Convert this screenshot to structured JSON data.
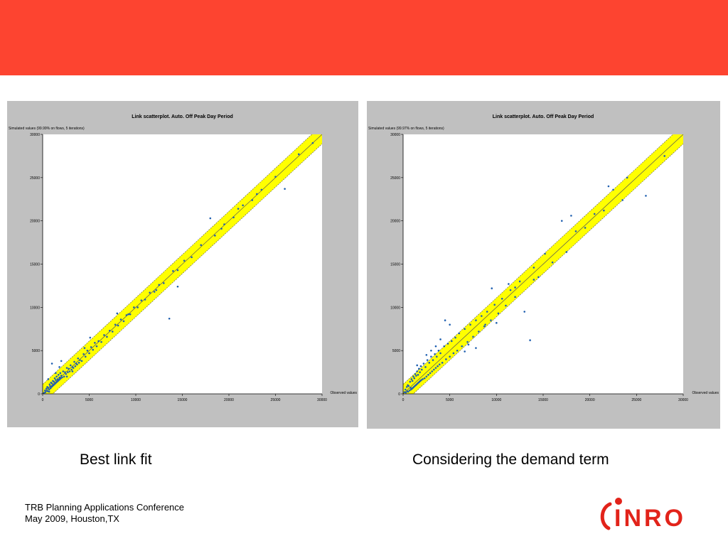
{
  "slide": {
    "banner_color": "#fd4430",
    "captions": [
      "Best link fit",
      "Considering the demand term"
    ],
    "footer": {
      "line1": "TRB Planning Applications Conference",
      "line2": "May 2009, Houston,TX"
    },
    "logo": {
      "text": "INRO",
      "color": "#e2231a"
    }
  },
  "chart_data": [
    {
      "type": "scatter",
      "title": "Link scatterplot. Auto. Off Peak Day Period",
      "ylabel": "Simulated values (99.99% on flows, 5 iterations)",
      "xlabel": "Observed values",
      "xlim": [
        0,
        30000
      ],
      "ylim": [
        0,
        30000
      ],
      "xticks": [
        0,
        5000,
        10000,
        15000,
        20000,
        25000,
        30000
      ],
      "yticks": [
        0,
        5000,
        10000,
        15000,
        20000,
        25000,
        30000
      ],
      "band_color": "#ffff00",
      "point_color": "#1f5fb0",
      "points": [
        [
          150,
          120
        ],
        [
          250,
          400
        ],
        [
          300,
          180
        ],
        [
          400,
          600
        ],
        [
          450,
          350
        ],
        [
          500,
          800
        ],
        [
          550,
          300
        ],
        [
          600,
          700
        ],
        [
          700,
          500
        ],
        [
          750,
          1100
        ],
        [
          800,
          900
        ],
        [
          850,
          650
        ],
        [
          900,
          1300
        ],
        [
          950,
          800
        ],
        [
          1000,
          1200
        ],
        [
          1050,
          900
        ],
        [
          1100,
          1500
        ],
        [
          1150,
          1000
        ],
        [
          1200,
          1400
        ],
        [
          1250,
          1100
        ],
        [
          1300,
          1800
        ],
        [
          1350,
          1200
        ],
        [
          1400,
          1600
        ],
        [
          1450,
          1300
        ],
        [
          1500,
          2000
        ],
        [
          1550,
          1400
        ],
        [
          1600,
          1700
        ],
        [
          1650,
          1500
        ],
        [
          1700,
          2200
        ],
        [
          1750,
          1600
        ],
        [
          1800,
          1900
        ],
        [
          1850,
          1700
        ],
        [
          1900,
          2400
        ],
        [
          1950,
          1800
        ],
        [
          2000,
          2100
        ],
        [
          2100,
          1900
        ],
        [
          2200,
          2600
        ],
        [
          2300,
          2000
        ],
        [
          2400,
          2500
        ],
        [
          2500,
          2300
        ],
        [
          2600,
          3000
        ],
        [
          2700,
          2500
        ],
        [
          2800,
          2900
        ],
        [
          2900,
          2600
        ],
        [
          3000,
          3300
        ],
        [
          3100,
          2800
        ],
        [
          3200,
          3100
        ],
        [
          3300,
          3000
        ],
        [
          3400,
          3700
        ],
        [
          3500,
          3200
        ],
        [
          3600,
          3500
        ],
        [
          3700,
          3400
        ],
        [
          3800,
          4100
        ],
        [
          3900,
          3600
        ],
        [
          4000,
          3900
        ],
        [
          4200,
          3800
        ],
        [
          4400,
          4600
        ],
        [
          4600,
          4300
        ],
        [
          4800,
          5000
        ],
        [
          5000,
          4700
        ],
        [
          5200,
          5400
        ],
        [
          5400,
          5100
        ],
        [
          5600,
          5900
        ],
        [
          5800,
          5500
        ],
        [
          6000,
          6100
        ],
        [
          6300,
          6000
        ],
        [
          6600,
          6800
        ],
        [
          6900,
          6600
        ],
        [
          7200,
          7300
        ],
        [
          7500,
          7200
        ],
        [
          7800,
          8000
        ],
        [
          8100,
          7900
        ],
        [
          8400,
          8600
        ],
        [
          8700,
          8400
        ],
        [
          9000,
          9100
        ],
        [
          9400,
          9200
        ],
        [
          9800,
          10000
        ],
        [
          10200,
          10000
        ],
        [
          10600,
          10800
        ],
        [
          11000,
          10900
        ],
        [
          11500,
          11700
        ],
        [
          12000,
          11800
        ],
        [
          12500,
          12600
        ],
        [
          13000,
          12800
        ],
        [
          13600,
          8700
        ],
        [
          14000,
          14200
        ],
        [
          14500,
          14300
        ],
        [
          15200,
          15400
        ],
        [
          16000,
          15800
        ],
        [
          17000,
          17200
        ],
        [
          18000,
          20300
        ],
        [
          18500,
          18300
        ],
        [
          19500,
          19600
        ],
        [
          20500,
          20400
        ],
        [
          21500,
          21800
        ],
        [
          22500,
          22400
        ],
        [
          23500,
          23600
        ],
        [
          25000,
          25100
        ],
        [
          26000,
          23700
        ],
        [
          27500,
          27700
        ],
        [
          1000,
          3500
        ],
        [
          2000,
          3800
        ],
        [
          9200,
          9200
        ],
        [
          4500,
          5300
        ],
        [
          3200,
          2600
        ],
        [
          1400,
          2400
        ],
        [
          600,
          1700
        ],
        [
          700,
          250
        ],
        [
          1800,
          3100
        ],
        [
          2600,
          2000
        ],
        [
          5100,
          6500
        ],
        [
          8000,
          9300
        ],
        [
          12200,
          12000
        ],
        [
          14500,
          12400
        ],
        [
          19200,
          19100
        ],
        [
          21000,
          21400
        ],
        [
          23000,
          23100
        ],
        [
          29000,
          29000
        ]
      ]
    },
    {
      "type": "scatter",
      "title": "Link scatterplot. Auto. Off Peak Day Period",
      "ylabel": "Simulated values (99.97% on flows, 5 iterations)",
      "xlabel": "Observed values",
      "xlim": [
        0,
        30000
      ],
      "ylim": [
        0,
        30000
      ],
      "xticks": [
        0,
        5000,
        10000,
        15000,
        20000,
        25000,
        30000
      ],
      "yticks": [
        0,
        5000,
        10000,
        15000,
        20000,
        25000,
        30000
      ],
      "band_color": "#ffff00",
      "point_color": "#1f5fb0",
      "points": [
        [
          150,
          200
        ],
        [
          250,
          500
        ],
        [
          300,
          150
        ],
        [
          400,
          800
        ],
        [
          450,
          300
        ],
        [
          500,
          1000
        ],
        [
          550,
          250
        ],
        [
          600,
          900
        ],
        [
          700,
          400
        ],
        [
          750,
          1400
        ],
        [
          800,
          700
        ],
        [
          850,
          500
        ],
        [
          900,
          1700
        ],
        [
          950,
          600
        ],
        [
          1000,
          1500
        ],
        [
          1050,
          700
        ],
        [
          1100,
          2000
        ],
        [
          1150,
          800
        ],
        [
          1200,
          1800
        ],
        [
          1250,
          900
        ],
        [
          1300,
          2300
        ],
        [
          1350,
          1000
        ],
        [
          1400,
          2100
        ],
        [
          1450,
          1100
        ],
        [
          1500,
          2600
        ],
        [
          1550,
          1200
        ],
        [
          1600,
          2200
        ],
        [
          1650,
          1300
        ],
        [
          1700,
          2900
        ],
        [
          1750,
          1400
        ],
        [
          1800,
          2500
        ],
        [
          1850,
          1500
        ],
        [
          1900,
          3200
        ],
        [
          1950,
          1600
        ],
        [
          2000,
          2800
        ],
        [
          2100,
          1700
        ],
        [
          2200,
          3500
        ],
        [
          2300,
          1800
        ],
        [
          2400,
          3100
        ],
        [
          2500,
          2000
        ],
        [
          2600,
          3900
        ],
        [
          2700,
          2200
        ],
        [
          2800,
          3600
        ],
        [
          2900,
          2400
        ],
        [
          3000,
          4300
        ],
        [
          3100,
          2600
        ],
        [
          3200,
          3900
        ],
        [
          3300,
          2800
        ],
        [
          3400,
          4600
        ],
        [
          3500,
          3000
        ],
        [
          3600,
          4300
        ],
        [
          3700,
          3200
        ],
        [
          3800,
          5000
        ],
        [
          3900,
          3400
        ],
        [
          4000,
          4700
        ],
        [
          4200,
          3600
        ],
        [
          4400,
          5500
        ],
        [
          4600,
          4000
        ],
        [
          4800,
          5800
        ],
        [
          5000,
          4300
        ],
        [
          5200,
          6100
        ],
        [
          5400,
          4700
        ],
        [
          5600,
          6500
        ],
        [
          5800,
          5000
        ],
        [
          6000,
          7000
        ],
        [
          6300,
          5500
        ],
        [
          6600,
          7500
        ],
        [
          6900,
          6000
        ],
        [
          7200,
          8000
        ],
        [
          7500,
          6600
        ],
        [
          7800,
          8500
        ],
        [
          8100,
          7200
        ],
        [
          8400,
          9000
        ],
        [
          8700,
          7800
        ],
        [
          9000,
          9500
        ],
        [
          9400,
          8500
        ],
        [
          9800,
          10300
        ],
        [
          10200,
          9300
        ],
        [
          10600,
          11000
        ],
        [
          11000,
          10200
        ],
        [
          11500,
          12000
        ],
        [
          12000,
          11200
        ],
        [
          12500,
          13000
        ],
        [
          13000,
          9500
        ],
        [
          13600,
          6200
        ],
        [
          14000,
          14600
        ],
        [
          14500,
          13500
        ],
        [
          15200,
          16200
        ],
        [
          16000,
          15200
        ],
        [
          17000,
          20000
        ],
        [
          17500,
          16400
        ],
        [
          18000,
          20600
        ],
        [
          18500,
          18800
        ],
        [
          19500,
          19200
        ],
        [
          20500,
          20800
        ],
        [
          21500,
          21200
        ],
        [
          22500,
          23600
        ],
        [
          23500,
          22400
        ],
        [
          24000,
          25000
        ],
        [
          26000,
          22900
        ],
        [
          28000,
          27500
        ],
        [
          4500,
          8500
        ],
        [
          5000,
          8000
        ],
        [
          8800,
          8000
        ],
        [
          3500,
          5500
        ],
        [
          6600,
          4900
        ],
        [
          7000,
          5700
        ],
        [
          9500,
          12200
        ],
        [
          11300,
          12700
        ],
        [
          12000,
          12300
        ],
        [
          10000,
          8200
        ],
        [
          14000,
          13200
        ],
        [
          7800,
          5300
        ],
        [
          2500,
          4500
        ],
        [
          1500,
          3300
        ],
        [
          3000,
          5000
        ],
        [
          4000,
          6300
        ],
        [
          22000,
          24000
        ]
      ]
    }
  ]
}
